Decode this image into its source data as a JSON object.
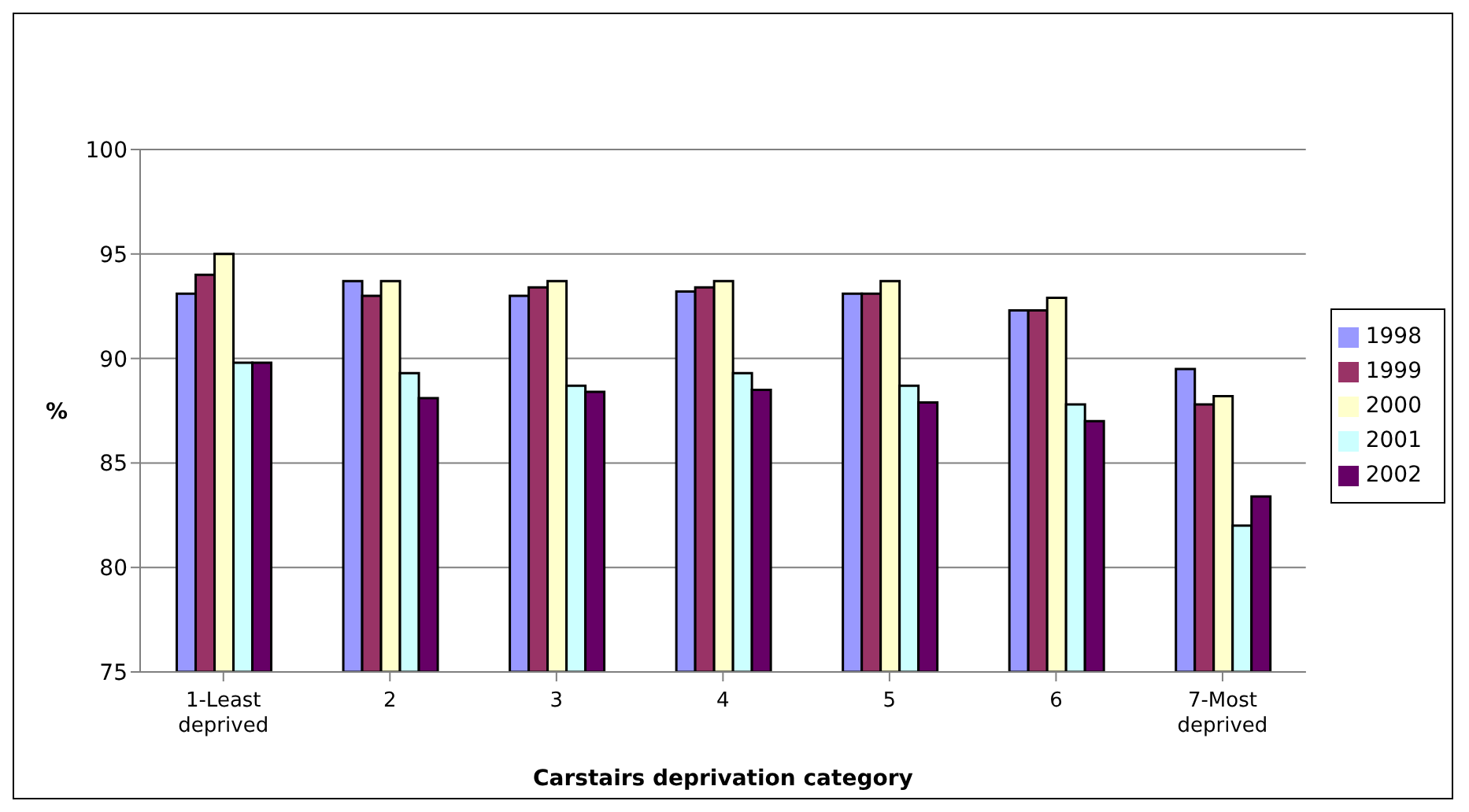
{
  "chart_data": {
    "type": "bar",
    "xlabel": "Carstairs deprivation category",
    "ylabel": "%",
    "categories": [
      "1-Least deprived",
      "2",
      "3",
      "4",
      "5",
      "6",
      "7-Most deprived"
    ],
    "series": [
      {
        "name": "1998",
        "color": "#9999ff",
        "values": [
          93.1,
          93.7,
          93.0,
          93.2,
          93.1,
          92.3,
          89.5
        ]
      },
      {
        "name": "1999",
        "color": "#993366",
        "values": [
          94.0,
          93.0,
          93.4,
          93.4,
          93.1,
          92.3,
          87.8
        ]
      },
      {
        "name": "2000",
        "color": "#ffffcc",
        "values": [
          95.0,
          93.7,
          93.7,
          93.7,
          93.7,
          92.9,
          88.2
        ]
      },
      {
        "name": "2001",
        "color": "#ccffff",
        "values": [
          89.8,
          89.3,
          88.7,
          89.3,
          88.7,
          87.8,
          82.0
        ]
      },
      {
        "name": "2002",
        "color": "#660066",
        "values": [
          89.8,
          88.1,
          88.4,
          88.5,
          87.9,
          87.0,
          83.4
        ]
      }
    ],
    "ylim": [
      75,
      100
    ],
    "yticks": [
      75,
      80,
      85,
      90,
      95,
      100
    ],
    "grid": "y",
    "legend": "right"
  }
}
